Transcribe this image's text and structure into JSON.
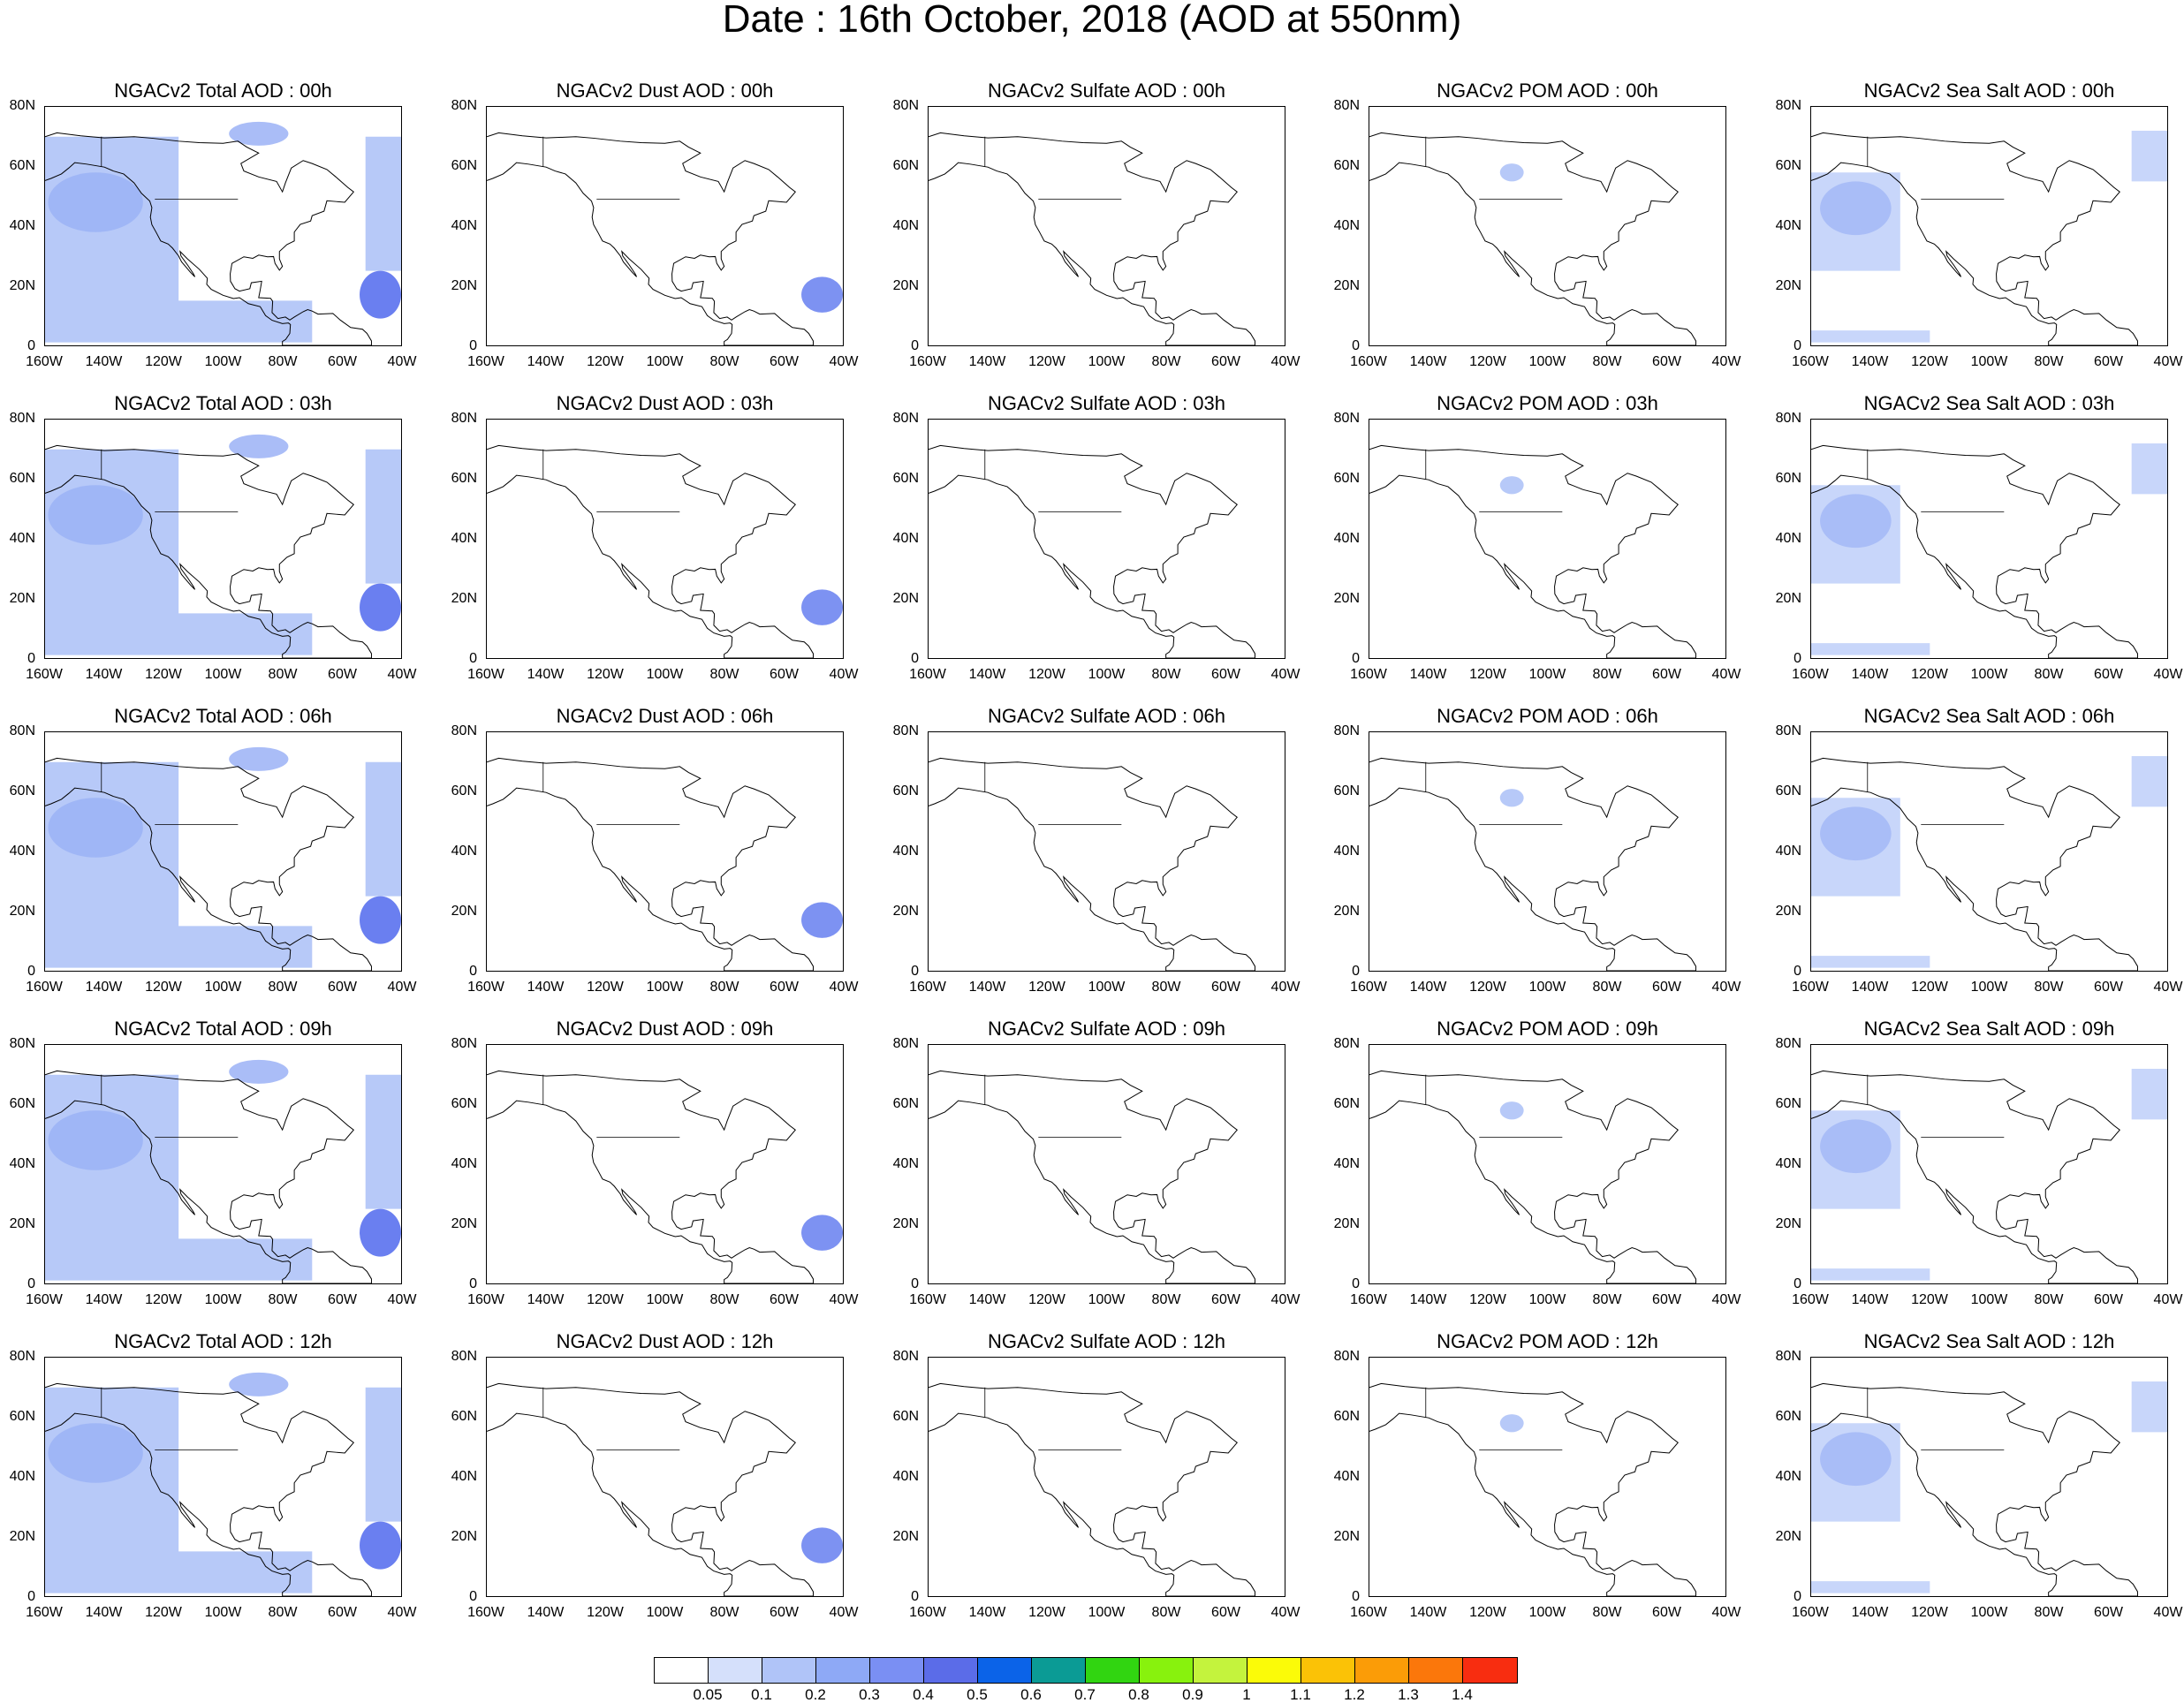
{
  "title": "Date : 16th October, 2018 (AOD at 550nm)",
  "panel_titles": [
    [
      "NGACv2 Total AOD : 00h",
      "NGACv2 Dust AOD : 00h",
      "NGACv2 Sulfate AOD : 00h",
      "NGACv2 POM AOD : 00h",
      "NGACv2 Sea Salt AOD : 00h"
    ],
    [
      "NGACv2 Total AOD : 03h",
      "NGACv2 Dust AOD : 03h",
      "NGACv2 Sulfate AOD : 03h",
      "NGACv2 POM AOD : 03h",
      "NGACv2 Sea Salt AOD : 03h"
    ],
    [
      "NGACv2 Total AOD : 06h",
      "NGACv2 Dust AOD : 06h",
      "NGACv2 Sulfate AOD : 06h",
      "NGACv2 POM AOD : 06h",
      "NGACv2 Sea Salt AOD : 06h"
    ],
    [
      "NGACv2 Total AOD : 09h",
      "NGACv2 Dust AOD : 09h",
      "NGACv2 Sulfate AOD : 09h",
      "NGACv2 POM AOD : 09h",
      "NGACv2 Sea Salt  AOD : 09h"
    ],
    [
      "NGACv2 Total AOD  : 12h",
      "NGACv2 Dust AOD : 12h",
      "NGACv2 Sulfate AOD : 12h",
      "NGACv2 POM  AOD : 12h",
      "NGACv2 Sea Salt  AOD : 12h"
    ]
  ],
  "y_ticks": [
    "80N",
    "60N",
    "40N",
    "20N",
    "0"
  ],
  "x_ticks": [
    "160W",
    "140W",
    "120W",
    "100W",
    "80W",
    "60W",
    "40W"
  ],
  "colorbar": {
    "labels": [
      "0.05",
      "0.1",
      "0.2",
      "0.3",
      "0.4",
      "0.5",
      "0.6",
      "0.7",
      "0.8",
      "0.9",
      "1",
      "1.1",
      "1.2",
      "1.3",
      "1.4"
    ],
    "colors": [
      "#ffffff",
      "#d5e0fb",
      "#b0c4f8",
      "#8ea9f6",
      "#7a8ff3",
      "#5b6ce8",
      "#0b63e8",
      "#0b9b95",
      "#31d511",
      "#88f20d",
      "#c4f33d",
      "#fbfb08",
      "#fbc206",
      "#fb9c07",
      "#fb770b",
      "#f82d10"
    ]
  },
  "fields": {
    "total": {
      "pacific": "#b7c9f8",
      "pacific_inner": "#9fb6f6",
      "atlantic": "#b7c9f8",
      "dust": "#6a7ff0",
      "arctic": "#aabdf7"
    },
    "dust": {
      "dust": "#7d92f2"
    },
    "sulfate": {},
    "pom": {
      "plume": "#b7c9f8"
    },
    "seasalt": {
      "pacific": "#c8d6fa",
      "pacific_inner": "#a9bdf7",
      "atlantic": "#c8d6fa"
    }
  }
}
